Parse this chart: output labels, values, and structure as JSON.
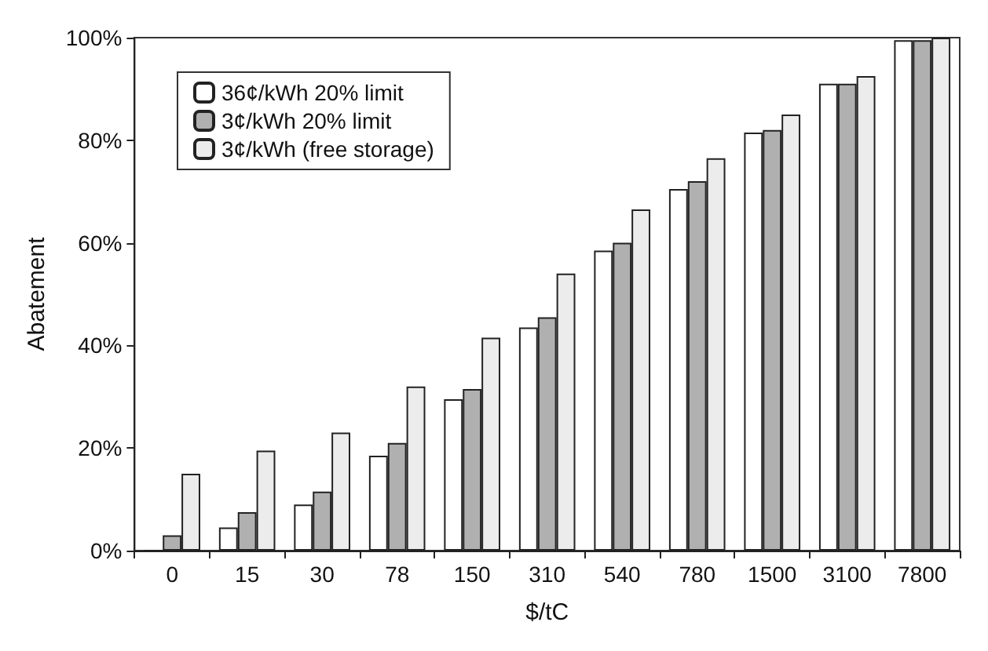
{
  "chart_data": {
    "type": "bar",
    "xlabel": "$/tC",
    "ylabel": "Abatement",
    "categories": [
      "0",
      "15",
      "30",
      "78",
      "150",
      "310",
      "540",
      "780",
      "1500",
      "3100",
      "7800"
    ],
    "series": [
      {
        "name": "36¢/kWh 20% limit",
        "color": "#ffffff",
        "values": [
          0,
          4.5,
          9,
          18.5,
          29.5,
          43.5,
          58.5,
          70.5,
          81.5,
          91,
          99.5
        ]
      },
      {
        "name": "3¢/kWh 20% limit",
        "color": "#b0b0b0",
        "values": [
          3,
          7.5,
          11.5,
          21,
          31.5,
          45.5,
          60,
          72,
          82,
          91,
          99.5
        ]
      },
      {
        "name": "3¢/kWh (free storage)",
        "color": "#ececec",
        "values": [
          15,
          19.5,
          23,
          32,
          41.5,
          54,
          66.5,
          76.5,
          85,
          92.5,
          100
        ]
      }
    ],
    "ylim": [
      0,
      100
    ],
    "yticks": [
      {
        "value": 0,
        "label": "0%"
      },
      {
        "value": 20,
        "label": "20%"
      },
      {
        "value": 40,
        "label": "40%"
      },
      {
        "value": 60,
        "label": "60%"
      },
      {
        "value": 80,
        "label": "80%"
      },
      {
        "value": 100,
        "label": "100%"
      }
    ],
    "grid": false,
    "legend": "top left"
  }
}
